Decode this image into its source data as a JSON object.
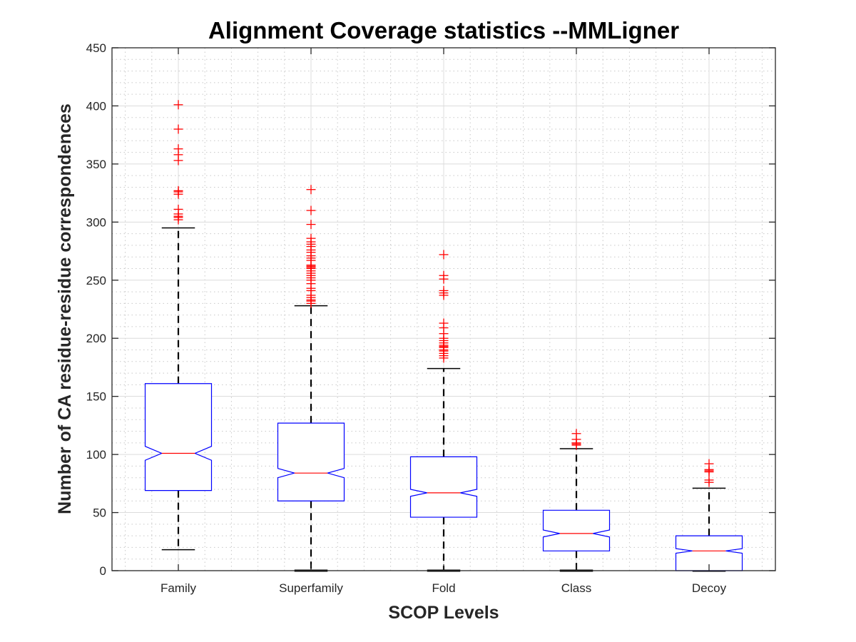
{
  "chart_data": {
    "type": "boxplot",
    "title": "Alignment Coverage statistics --MMLigner",
    "xlabel": "SCOP Levels",
    "ylabel": "Number of CA residue-residue correspondences",
    "ylim": [
      0,
      450
    ],
    "yticks": [
      0,
      50,
      100,
      150,
      200,
      250,
      300,
      350,
      400,
      450
    ],
    "grid": true,
    "minor_grid": true,
    "notched": true,
    "categories": [
      "Family",
      "Superfamily",
      "Fold",
      "Class",
      "Decoy"
    ],
    "colors": {
      "box": "#0000ff",
      "median": "#ff0000",
      "whisker": "#000000",
      "outlier": "#ff0000",
      "grid": "#dcdcdc",
      "axis": "#262626"
    },
    "boxes": [
      {
        "name": "Family",
        "whisker_low": 18,
        "q1": 69,
        "median": 101,
        "q3": 161,
        "whisker_high": 295,
        "notch_low": 95,
        "notch_high": 107,
        "outliers": [
          302,
          304,
          305,
          307,
          311,
          324,
          326,
          327,
          353,
          358,
          363,
          380,
          401
        ]
      },
      {
        "name": "Superfamily",
        "whisker_low": 0,
        "q1": 60,
        "median": 84,
        "q3": 127,
        "whisker_high": 228,
        "notch_low": 80,
        "notch_high": 88,
        "outliers": [
          230,
          232,
          233,
          235,
          237,
          241,
          243,
          247,
          250,
          252,
          254,
          256,
          258,
          260,
          261,
          262,
          263,
          267,
          269,
          271,
          274,
          276,
          279,
          281,
          283,
          286,
          298,
          310,
          328
        ]
      },
      {
        "name": "Fold",
        "whisker_low": 0,
        "q1": 46,
        "median": 67,
        "q3": 98,
        "whisker_high": 174,
        "notch_low": 64,
        "notch_high": 70,
        "outliers": [
          183,
          185,
          187,
          189,
          190,
          192,
          193,
          194,
          196,
          198,
          200,
          204,
          209,
          213,
          237,
          239,
          241,
          251,
          254,
          272
        ]
      },
      {
        "name": "Class",
        "whisker_low": 0,
        "q1": 17,
        "median": 32,
        "q3": 52,
        "whisker_high": 105,
        "notch_low": 29,
        "notch_high": 35,
        "outliers": [
          108,
          109,
          110,
          113,
          118
        ]
      },
      {
        "name": "Decoy",
        "whisker_low": 0,
        "q1": 0,
        "median": 17,
        "q3": 30,
        "whisker_high": 71,
        "notch_low": 15,
        "notch_high": 19,
        "outliers": [
          76,
          78,
          85,
          86,
          87,
          92
        ]
      }
    ]
  }
}
